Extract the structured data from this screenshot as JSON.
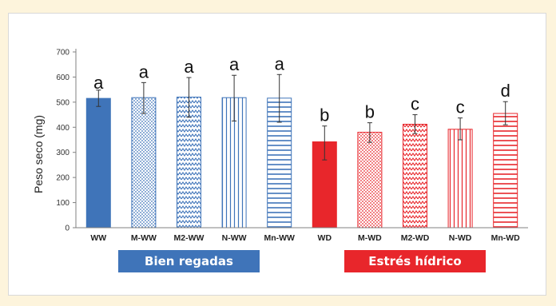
{
  "chart_data": {
    "type": "bar",
    "ylabel": "Peso seco (mg)",
    "ylim": [
      0,
      700
    ],
    "yticks": [
      0,
      100,
      200,
      300,
      400,
      500,
      600,
      700
    ],
    "grid": false,
    "categories": [
      "WW",
      "M-WW",
      "M2-WW",
      "N-WW",
      "Mn-WW",
      "WD",
      "M-WD",
      "M2-WD",
      "N-WD",
      "Mn-WD"
    ],
    "values": [
      515,
      518,
      520,
      518,
      516,
      342,
      380,
      412,
      392,
      455
    ],
    "error_low": [
      483,
      455,
      440,
      425,
      420,
      270,
      340,
      375,
      350,
      410
    ],
    "error_high": [
      548,
      578,
      598,
      607,
      610,
      405,
      418,
      450,
      437,
      502
    ],
    "significance_letters": [
      "a",
      "a",
      "a",
      "a",
      "a",
      "b",
      "b",
      "c",
      "c",
      "d"
    ],
    "fills": [
      "solid",
      "dots",
      "zigzag",
      "vlines",
      "hlines",
      "solid",
      "dots",
      "zigzag",
      "vlines",
      "hlines"
    ],
    "groups": [
      {
        "label": "Bien regadas",
        "members": [
          "WW",
          "M-WW",
          "M2-WW",
          "N-WW",
          "Mn-WW"
        ],
        "color": "#3f74b9"
      },
      {
        "label": "Estrés hídrico",
        "members": [
          "WD",
          "M-WD",
          "M2-WD",
          "N-WD",
          "Mn-WD"
        ],
        "color": "#e8262b"
      }
    ]
  }
}
